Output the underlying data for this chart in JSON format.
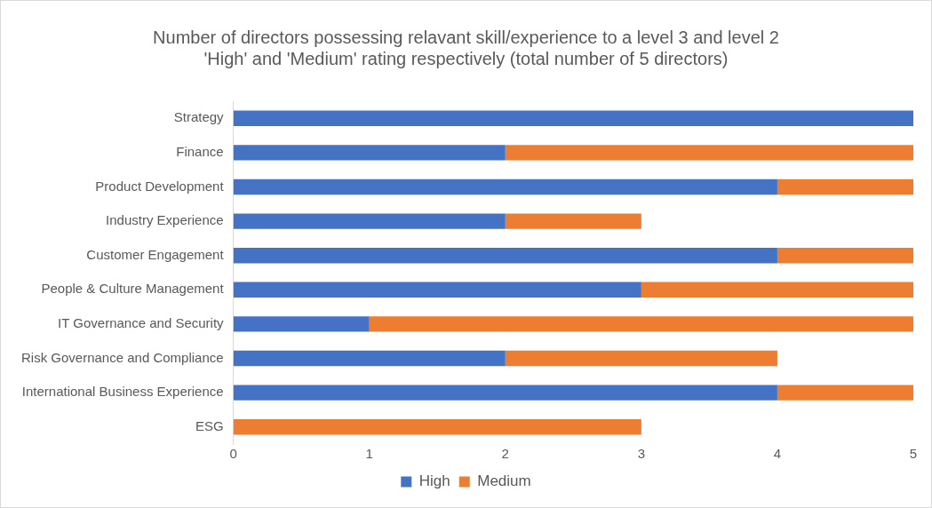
{
  "chart_data": {
    "type": "bar",
    "orientation": "horizontal",
    "stacked": true,
    "title": "Number of directors possessing relavant skill/experience to a level 3 and level 2\n'High' and 'Medium' rating respectively (total number of 5 directors)",
    "categories": [
      "Strategy",
      "Finance",
      "Product Development",
      "Industry Experience",
      "Customer Engagement",
      "People & Culture Management",
      "IT Governance and Security",
      "Risk Governance and Compliance",
      "International Business Experience",
      "ESG"
    ],
    "series": [
      {
        "name": "High",
        "color": "#4472c4",
        "values": [
          5,
          2,
          4,
          2,
          4,
          3,
          1,
          2,
          4,
          0
        ]
      },
      {
        "name": "Medium",
        "color": "#ed7d31",
        "values": [
          0,
          3,
          1,
          1,
          1,
          2,
          4,
          2,
          1,
          3
        ]
      }
    ],
    "xlim": [
      0,
      5
    ],
    "xticks": [
      0,
      1,
      2,
      3,
      4,
      5
    ],
    "grid": false,
    "legend": "bottom"
  }
}
